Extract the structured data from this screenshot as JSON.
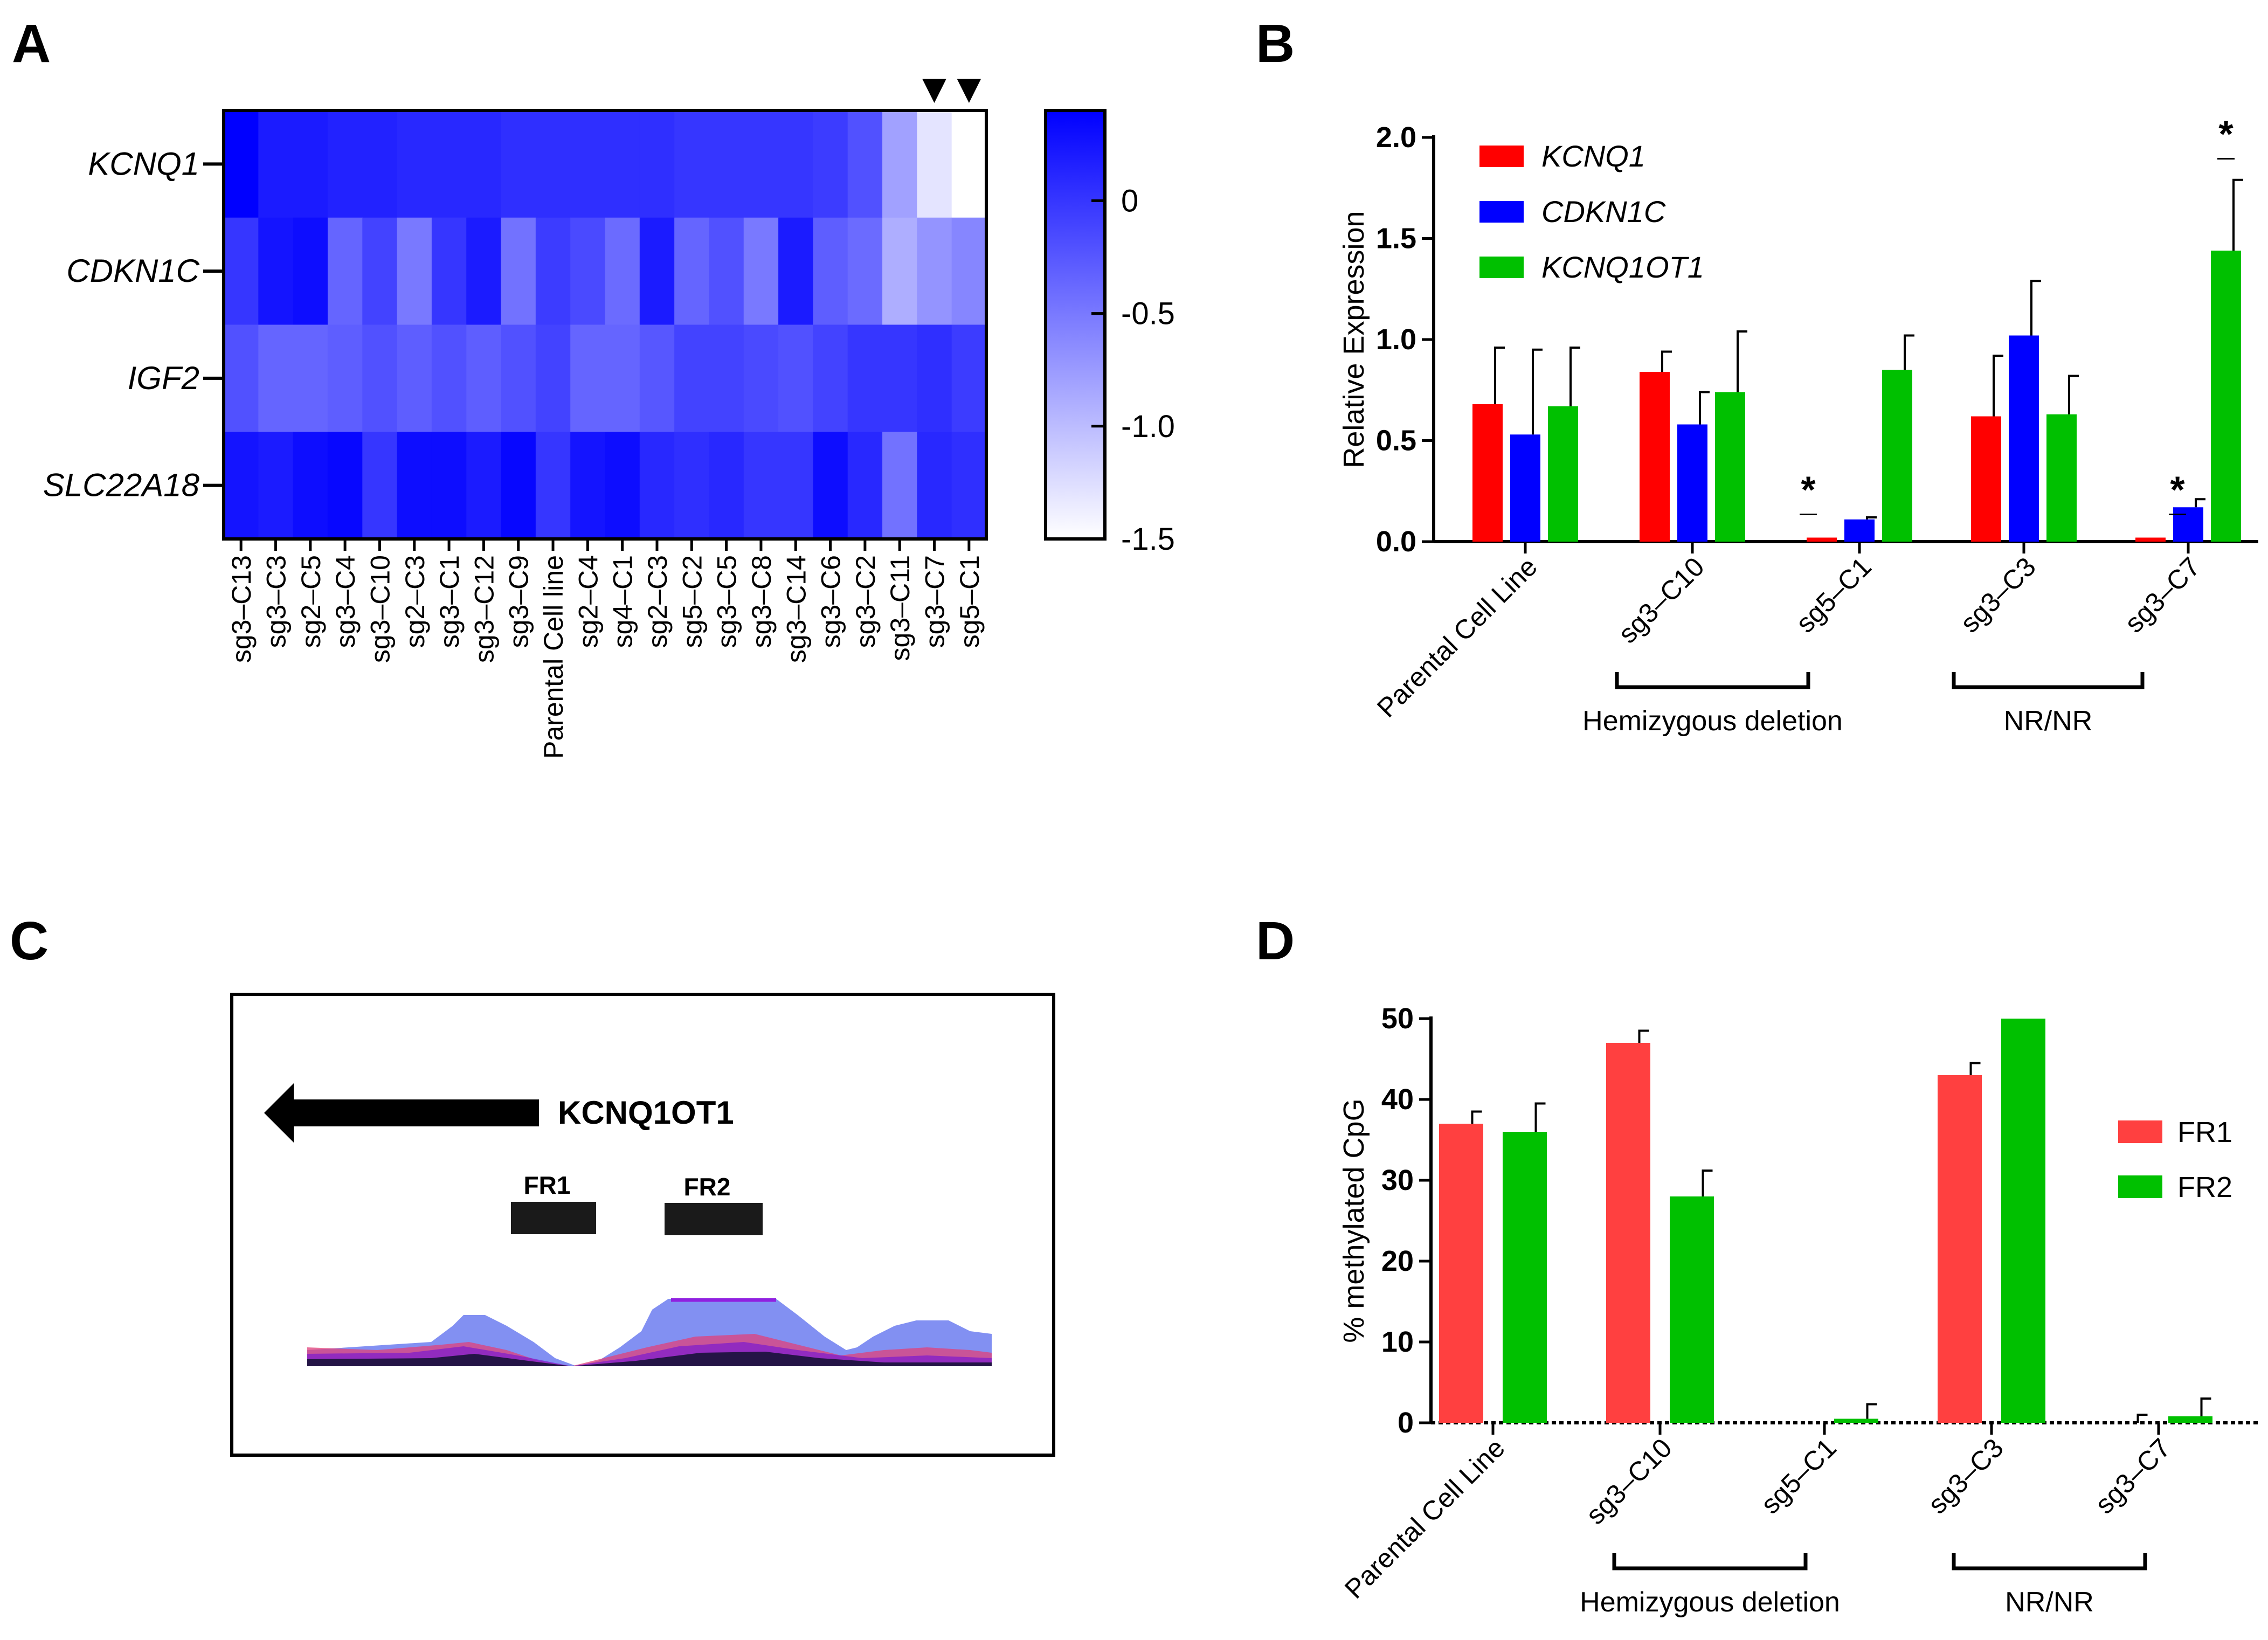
{
  "panels": {
    "a": "A",
    "b": "B",
    "c": "C",
    "d": "D"
  },
  "chart_data": [
    {
      "panel": "A",
      "type": "heatmap",
      "rows": [
        "KCNQ1",
        "CDKN1C",
        "IGF2",
        "SLC22A18"
      ],
      "columns": [
        "sg3–C13",
        "sg3–C3",
        "sg2–C5",
        "sg3–C4",
        "sg3–C10",
        "sg2–C3",
        "sg3–C1",
        "sg3–C12",
        "sg3–C9",
        "Parental Cell line",
        "sg2–C4",
        "sg4–C1",
        "sg2–C3",
        "sg5–C2",
        "sg3–C5",
        "sg3–C8",
        "sg3–C14",
        "sg3–C6",
        "sg3–C2",
        "sg3–C11",
        "sg3–C7",
        "sg5–C1"
      ],
      "values": [
        [
          0.4,
          0.2,
          0.2,
          0.15,
          0.15,
          0.1,
          0.1,
          0.1,
          0.05,
          0.05,
          0.05,
          0.05,
          0.05,
          0.0,
          0.0,
          0.0,
          0.0,
          -0.05,
          -0.2,
          -0.8,
          -1.3,
          -1.55
        ],
        [
          0.0,
          0.25,
          0.3,
          -0.35,
          -0.1,
          -0.5,
          0.0,
          0.2,
          -0.45,
          -0.05,
          -0.15,
          -0.4,
          0.2,
          -0.35,
          -0.2,
          -0.5,
          0.2,
          -0.3,
          -0.4,
          -0.9,
          -0.7,
          -0.6
        ],
        [
          -0.2,
          -0.35,
          -0.35,
          -0.3,
          -0.2,
          -0.3,
          -0.2,
          -0.3,
          -0.2,
          -0.1,
          -0.35,
          -0.35,
          -0.25,
          -0.1,
          -0.1,
          -0.15,
          -0.2,
          -0.1,
          0.0,
          0.0,
          0.05,
          -0.05
        ],
        [
          0.25,
          0.2,
          0.3,
          0.35,
          0.0,
          0.3,
          0.3,
          0.2,
          0.35,
          0.0,
          0.25,
          0.3,
          0.1,
          0.05,
          0.1,
          0.0,
          0.0,
          0.3,
          0.1,
          -0.45,
          0.1,
          0.05
        ]
      ],
      "colorbar": {
        "min": -1.5,
        "max": 0.4,
        "ticks": [
          "0",
          "-0.5",
          "-1.0",
          "-1.5"
        ],
        "tick_values": [
          0,
          -0.5,
          -1.0,
          -1.5
        ],
        "low_color": "#ffffff",
        "high_color": "#0000ff"
      },
      "markers": {
        "symbol": "▼",
        "columns": [
          "sg3–C7",
          "sg5–C1"
        ]
      }
    },
    {
      "panel": "B",
      "type": "bar",
      "ylabel": "Relative Expression",
      "ylim": [
        0,
        2.0
      ],
      "yticks": [
        "0.0",
        "0.5",
        "1.0",
        "1.5",
        "2.0"
      ],
      "ytick_values": [
        0,
        0.5,
        1.0,
        1.5,
        2.0
      ],
      "categories": [
        "Parental Cell Line",
        "sg3–C10",
        "sg5–C1",
        "sg3–C3",
        "sg3–C7"
      ],
      "series": [
        {
          "name": "KCNQ1",
          "color": "#ff0000",
          "values": [
            0.68,
            0.84,
            0.02,
            0.62,
            0.02
          ],
          "errors": [
            0.28,
            0.1,
            0.0,
            0.3,
            0.0
          ]
        },
        {
          "name": "CDKN1C",
          "color": "#0000ff",
          "values": [
            0.53,
            0.58,
            0.11,
            1.02,
            0.17
          ],
          "errors": [
            0.42,
            0.16,
            0.01,
            0.27,
            0.04
          ]
        },
        {
          "name": "KCNQ1OT1",
          "color": "#00c000",
          "values": [
            0.67,
            0.74,
            0.85,
            0.63,
            1.44
          ],
          "errors": [
            0.29,
            0.3,
            0.17,
            0.19,
            0.35
          ]
        }
      ],
      "annotations": [
        "*",
        "*",
        "*"
      ],
      "brackets": [
        {
          "label": "Hemizygous deletion"
        },
        {
          "label": "NR/NR"
        }
      ]
    },
    {
      "panel": "D",
      "type": "bar",
      "ylabel": "% methylated CpG",
      "ylim": [
        0,
        50
      ],
      "yticks": [
        "0",
        "10",
        "20",
        "30",
        "40",
        "50"
      ],
      "ytick_values": [
        0,
        10,
        20,
        30,
        40,
        50
      ],
      "categories": [
        "Parental Cell Line",
        "sg3–C10",
        "sg5–C1",
        "sg3–C3",
        "sg3–C7"
      ],
      "series": [
        {
          "name": "FR1",
          "color": "#ff4040",
          "values": [
            37,
            47,
            0,
            43,
            0
          ],
          "errors": [
            1.5,
            1.5,
            0,
            1.5,
            1.0
          ]
        },
        {
          "name": "FR2",
          "color": "#00c000",
          "values": [
            36,
            28,
            0.5,
            50,
            0.8
          ],
          "errors": [
            3.5,
            3.2,
            1.8,
            0,
            2.2
          ]
        }
      ],
      "brackets": [
        {
          "label": "Hemizygous deletion"
        },
        {
          "label": "NR/NR"
        }
      ]
    }
  ],
  "panel_c": {
    "gene": "KCNQ1OT1",
    "fragments": [
      "FR1",
      "FR2"
    ],
    "coverage_colors": [
      "#6c7cf0",
      "#e0407a",
      "#7a1ad0",
      "#101030"
    ]
  }
}
